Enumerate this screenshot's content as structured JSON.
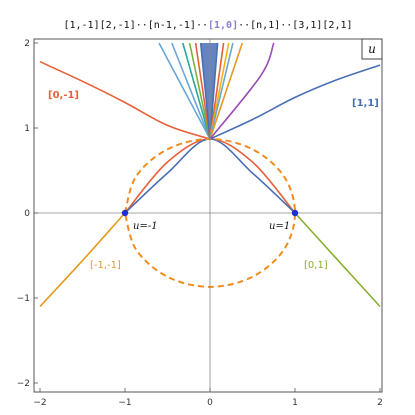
{
  "chart_data": {
    "type": "line",
    "title": "",
    "xlim": [
      -2.0,
      2.0
    ],
    "ylim": [
      -2.0,
      2.0
    ],
    "x_ticks": [
      "-2",
      "-1",
      "0",
      "1",
      "2"
    ],
    "y_ticks": [
      "-2",
      "-1",
      "0",
      "1",
      "2"
    ],
    "corner_label": "u",
    "top_labels": [
      {
        "text": "[1,-1]",
        "color": "#111111",
        "bold": false
      },
      {
        "text": "[2,-1]",
        "color": "#111111",
        "bold": false
      },
      {
        "text": "··",
        "color": "#111111",
        "bold": false
      },
      {
        "text": "[n-1,-1]",
        "color": "#111111",
        "bold": false
      },
      {
        "text": "··",
        "color": "#111111",
        "bold": false
      },
      {
        "text": "[1,0]",
        "color": "#8a7fd6",
        "bold": true
      },
      {
        "text": "··",
        "color": "#111111",
        "bold": false
      },
      {
        "text": "[n,1]",
        "color": "#111111",
        "bold": false
      },
      {
        "text": "··",
        "color": "#111111",
        "bold": false
      },
      {
        "text": "[3,1]",
        "color": "#111111",
        "bold": false
      },
      {
        "text": "[2,1]",
        "color": "#111111",
        "bold": false
      }
    ],
    "curve_labels": [
      {
        "text": "[0,-1]",
        "color": "#e8603a",
        "bold": true
      },
      {
        "text": "[1,1]",
        "color": "#4a6fb5",
        "bold": true
      },
      {
        "text": "[-1,-1]",
        "color": "#e39a1f",
        "bold": false
      },
      {
        "text": "[0,1]",
        "color": "#8aae2f",
        "bold": false
      }
    ],
    "points": [
      {
        "label": "u=-1",
        "x": -1.0,
        "y": 0.0
      },
      {
        "label": "u=1",
        "x": 1.0,
        "y": 0.0
      }
    ],
    "meeting_point": {
      "x": 0.0,
      "y": 0.87
    },
    "series": [
      {
        "x": [
          -2.0,
          -1.5,
          -1.0,
          -0.5,
          0.0
        ],
        "y": [
          1.78,
          1.55,
          1.3,
          1.03,
          0.87
        ],
        "color": "#e8603a",
        "style": "solid"
      },
      {
        "x": [
          0.0,
          0.5,
          1.0,
          1.5,
          2.0
        ],
        "y": [
          0.87,
          1.1,
          1.36,
          1.57,
          1.74
        ],
        "color": "#4a6fb5",
        "style": "solid"
      },
      {
        "x": [
          -1.0,
          -0.5,
          0.0,
          0.5,
          1.0
        ],
        "y": [
          0.0,
          0.6,
          0.87,
          0.6,
          0.0
        ],
        "color": "#e8603a",
        "style": "solid"
      },
      {
        "x": [
          -1.0,
          -0.5,
          0.0,
          0.5,
          1.0
        ],
        "y": [
          0.0,
          0.47,
          0.87,
          0.47,
          0.0
        ],
        "color": "#4a6fb5",
        "style": "solid"
      },
      {
        "x": [
          -2.0,
          -1.5,
          -1.0
        ],
        "y": [
          -1.1,
          -0.56,
          0.0
        ],
        "color": "#e39a1f",
        "style": "solid"
      },
      {
        "x": [
          1.0,
          1.5,
          2.0
        ],
        "y": [
          0.0,
          -0.55,
          -1.1
        ],
        "color": "#8aae2f",
        "style": "solid"
      },
      {
        "x": [
          -1.0,
          -0.87,
          -0.5,
          0.0,
          0.5,
          0.87,
          1.0,
          0.87,
          0.5,
          0.0,
          -0.5,
          -0.87,
          -1.0
        ],
        "y": [
          0.0,
          0.43,
          0.75,
          0.87,
          0.75,
          0.43,
          0.0,
          -0.43,
          -0.75,
          -0.87,
          -0.75,
          -0.43,
          0.0
        ],
        "color": "#f28c1f",
        "style": "dashed"
      },
      {
        "x": [
          0.0,
          -0.6
        ],
        "y": [
          0.87,
          2.0
        ],
        "color": "#6aa6d8",
        "style": "solid"
      },
      {
        "x": [
          0.0,
          -0.45
        ],
        "y": [
          0.87,
          2.0
        ],
        "color": "#6aa6d8",
        "style": "solid"
      },
      {
        "x": [
          0.0,
          -0.32
        ],
        "y": [
          0.87,
          2.0
        ],
        "color": "#2fa7a0",
        "style": "solid"
      },
      {
        "x": [
          0.0,
          -0.24
        ],
        "y": [
          0.87,
          2.0
        ],
        "color": "#7bb33a",
        "style": "solid"
      },
      {
        "x": [
          0.0,
          -0.17
        ],
        "y": [
          0.87,
          2.0
        ],
        "color": "#e8603a",
        "style": "solid"
      },
      {
        "x": [
          0.0,
          -0.11
        ],
        "y": [
          0.87,
          2.0
        ],
        "color": "#4a6fb5",
        "style": "solid"
      },
      {
        "x": [
          0.0,
          0.09
        ],
        "y": [
          0.87,
          2.0
        ],
        "color": "#4a6fb5",
        "style": "solid"
      },
      {
        "x": [
          0.0,
          0.16
        ],
        "y": [
          0.87,
          2.0
        ],
        "color": "#e8603a",
        "style": "solid"
      },
      {
        "x": [
          0.0,
          0.22
        ],
        "y": [
          0.87,
          2.0
        ],
        "color": "#f2b50f",
        "style": "solid"
      },
      {
        "x": [
          0.0,
          0.27
        ],
        "y": [
          0.87,
          2.0
        ],
        "color": "#6aa6d8",
        "style": "solid"
      },
      {
        "x": [
          0.0,
          0.38
        ],
        "y": [
          0.87,
          2.0
        ],
        "color": "#e39a1f",
        "style": "solid"
      },
      {
        "x": [
          0.0,
          0.6,
          0.75
        ],
        "y": [
          0.87,
          1.62,
          2.0
        ],
        "color": "#9b4db8",
        "style": "solid"
      }
    ]
  }
}
